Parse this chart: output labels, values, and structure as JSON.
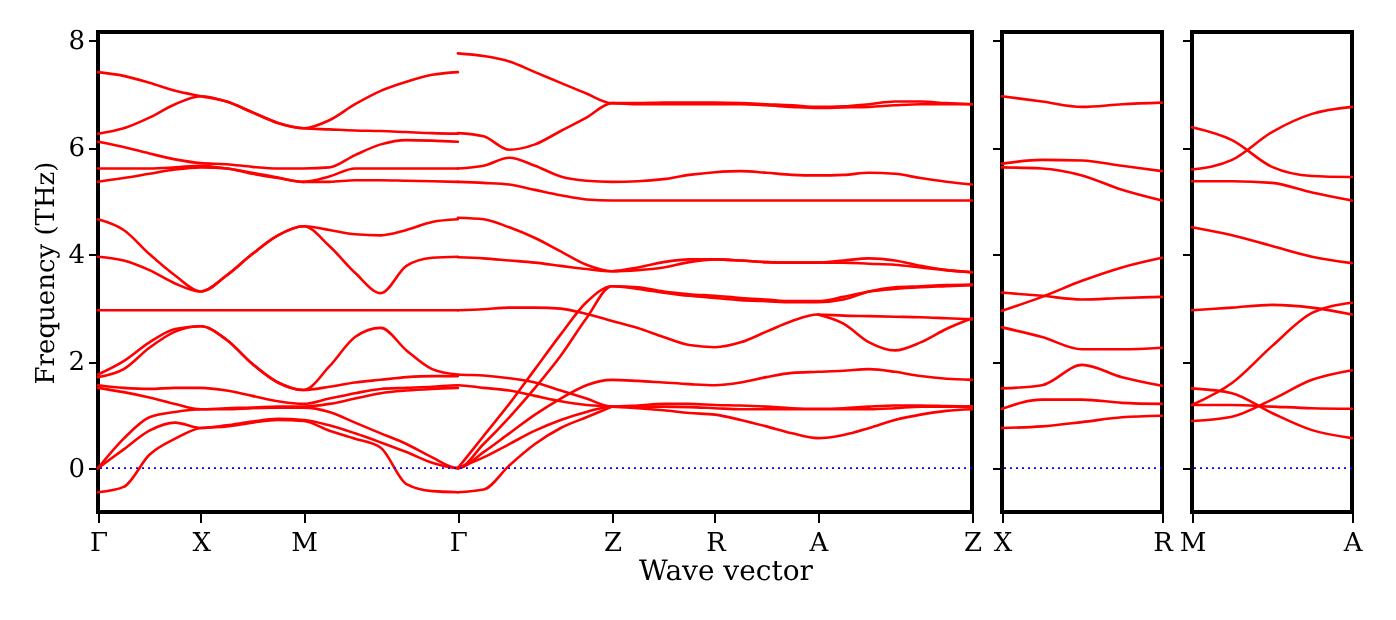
{
  "chart_data": [
    {
      "type": "line",
      "xlabel": "Wave vector",
      "ylabel": "Frequency (THz)",
      "ylim": [
        -0.82,
        8.15
      ],
      "yticks": [
        0,
        2,
        4,
        6,
        8
      ],
      "categories": [
        "Γ",
        null,
        null,
        null,
        "X",
        null,
        null,
        null,
        "M",
        null,
        null,
        null,
        null,
        null,
        "Γ",
        null,
        null,
        null,
        null,
        null,
        "Z",
        null,
        null,
        null,
        "R",
        null,
        null,
        null,
        "A",
        null,
        null,
        null,
        null,
        null,
        "Z"
      ],
      "ref_lines": [
        {
          "axis": "y",
          "value": 0,
          "color": "#0000ff",
          "line_style": "dotted"
        }
      ],
      "series": [
        {
          "color": "#ff0000",
          "values": [
            7.4,
            7.33,
            7.2,
            7.05,
            6.95,
            6.85,
            6.65,
            6.45,
            6.35,
            6.5,
            6.8,
            7.05,
            7.22,
            7.35,
            7.4,
            null,
            null,
            null,
            null,
            null,
            null,
            null,
            null,
            null,
            null,
            null,
            null,
            null,
            null,
            null,
            null,
            null,
            null,
            null,
            null
          ]
        },
        {
          "color": "#ff0000",
          "values": [
            6.25,
            6.35,
            6.55,
            6.8,
            6.95,
            6.85,
            6.65,
            6.45,
            6.35,
            6.33,
            6.31,
            6.3,
            6.28,
            6.26,
            6.25,
            null,
            null,
            null,
            null,
            null,
            null,
            null,
            null,
            null,
            null,
            null,
            null,
            null,
            null,
            null,
            null,
            null,
            null,
            null,
            null
          ]
        },
        {
          "color": "#ff0000",
          "values": [
            6.1,
            6.0,
            5.88,
            5.77,
            5.7,
            5.68,
            5.63,
            5.6,
            5.6,
            5.62,
            5.85,
            6.05,
            6.13,
            6.12,
            6.1,
            null,
            null,
            null,
            null,
            null,
            null,
            null,
            null,
            null,
            null,
            null,
            null,
            null,
            null,
            null,
            null,
            null,
            null,
            null,
            null
          ]
        },
        {
          "color": "#ff0000",
          "values": [
            5.6,
            5.6,
            5.6,
            5.62,
            5.65,
            5.6,
            5.52,
            5.43,
            5.35,
            5.45,
            5.6,
            5.6,
            5.6,
            5.6,
            5.6,
            null,
            null,
            null,
            null,
            null,
            null,
            null,
            null,
            null,
            null,
            null,
            null,
            null,
            null,
            null,
            null,
            null,
            null,
            null,
            null
          ]
        },
        {
          "color": "#ff0000",
          "values": [
            5.35,
            5.42,
            5.5,
            5.58,
            5.62,
            5.6,
            5.5,
            5.42,
            5.35,
            5.35,
            5.38,
            5.38,
            5.37,
            5.36,
            5.35,
            null,
            null,
            null,
            null,
            null,
            null,
            null,
            null,
            null,
            null,
            null,
            null,
            null,
            null,
            null,
            null,
            null,
            null,
            null,
            null
          ]
        },
        {
          "color": "#ff0000",
          "values": [
            4.65,
            4.45,
            4.0,
            3.6,
            3.3,
            3.6,
            4.0,
            4.35,
            4.52,
            4.45,
            4.37,
            4.35,
            4.45,
            4.6,
            4.65,
            null,
            null,
            null,
            null,
            null,
            null,
            null,
            null,
            null,
            null,
            null,
            null,
            null,
            null,
            null,
            null,
            null,
            null,
            null,
            null
          ]
        },
        {
          "color": "#ff0000",
          "values": [
            3.95,
            3.88,
            3.7,
            3.45,
            3.3,
            3.6,
            4.0,
            4.35,
            4.52,
            4.15,
            3.65,
            3.27,
            3.78,
            3.93,
            3.95,
            null,
            null,
            null,
            null,
            null,
            null,
            null,
            null,
            null,
            null,
            null,
            null,
            null,
            null,
            null,
            null,
            null,
            null,
            null,
            null
          ]
        },
        {
          "color": "#ff0000",
          "values": [
            2.95,
            2.95,
            2.95,
            2.95,
            2.95,
            2.95,
            2.95,
            2.95,
            2.95,
            2.95,
            2.95,
            2.95,
            2.95,
            2.95,
            2.95,
            null,
            null,
            null,
            null,
            null,
            null,
            null,
            null,
            null,
            null,
            null,
            null,
            null,
            null,
            null,
            null,
            null,
            null,
            null,
            null
          ]
        },
        {
          "color": "#ff0000",
          "values": [
            1.75,
            2.0,
            2.35,
            2.6,
            2.65,
            2.4,
            1.95,
            1.6,
            1.46,
            1.9,
            2.45,
            2.62,
            2.2,
            1.85,
            1.75,
            1.73,
            1.68,
            1.6,
            1.45,
            1.3,
            1.15,
            1.17,
            1.2,
            1.2,
            1.18,
            1.17,
            1.15,
            1.12,
            1.11,
            1.12,
            1.15,
            1.17,
            1.17,
            1.16,
            1.15
          ]
        },
        {
          "color": "#ff0000",
          "values": [
            1.7,
            1.85,
            2.25,
            2.55,
            2.65,
            2.4,
            1.95,
            1.6,
            1.46,
            1.52,
            1.6,
            1.65,
            1.7,
            1.72,
            1.72,
            null,
            null,
            null,
            null,
            null,
            null,
            null,
            null,
            null,
            null,
            null,
            null,
            null,
            null,
            null,
            null,
            null,
            null,
            null,
            null
          ]
        },
        {
          "color": "#ff0000",
          "values": [
            1.55,
            1.5,
            1.48,
            1.5,
            1.5,
            1.45,
            1.35,
            1.25,
            1.2,
            1.3,
            1.4,
            1.48,
            1.5,
            1.52,
            1.55,
            1.5,
            1.45,
            1.35,
            1.25,
            1.18,
            1.15,
            1.12,
            1.08,
            1.03,
            1.0,
            0.9,
            0.78,
            0.65,
            0.56,
            0.62,
            0.75,
            0.9,
            1.0,
            1.07,
            1.1
          ]
        },
        {
          "color": "#ff0000",
          "values": [
            1.5,
            1.42,
            1.32,
            1.2,
            1.1,
            1.12,
            1.13,
            1.15,
            1.15,
            1.2,
            1.3,
            1.4,
            1.45,
            1.48,
            1.5,
            null,
            null,
            null,
            null,
            null,
            null,
            null,
            null,
            null,
            null,
            null,
            null,
            null,
            null,
            null,
            null,
            null,
            null,
            null,
            null
          ]
        },
        {
          "color": "#ff0000",
          "values": [
            0,
            0.55,
            0.95,
            1.05,
            1.1,
            1.1,
            1.12,
            1.13,
            1.13,
            1.05,
            0.85,
            0.65,
            0.45,
            0.2,
            0,
            0.3,
            0.65,
            1.0,
            1.3,
            1.55,
            1.65,
            1.63,
            1.6,
            1.57,
            1.55,
            1.6,
            1.7,
            1.78,
            1.8,
            1.82,
            1.85,
            1.8,
            1.72,
            1.67,
            1.65
          ]
        },
        {
          "color": "#ff0000",
          "values": [
            0,
            0.35,
            0.7,
            0.85,
            0.75,
            0.8,
            0.87,
            0.92,
            0.9,
            0.8,
            0.65,
            0.48,
            0.3,
            0.1,
            0,
            0.45,
            0.95,
            1.5,
            2.1,
            2.8,
            3.4,
            3.35,
            3.28,
            3.22,
            3.18,
            3.14,
            3.12,
            3.1,
            3.1,
            3.15,
            3.3,
            3.38,
            3.4,
            3.42,
            3.43
          ]
        },
        {
          "color": "#ff0000",
          "values": [
            -0.45,
            -0.35,
            0.25,
            0.55,
            0.75,
            0.78,
            0.85,
            0.9,
            0.88,
            0.7,
            0.55,
            0.38,
            -0.3,
            -0.43,
            -0.45,
            null,
            null,
            null,
            null,
            null,
            null,
            null,
            null,
            null,
            null,
            null,
            null,
            null,
            null,
            null,
            null,
            null,
            null,
            null,
            null
          ]
        },
        {
          "color": "#ff0000",
          "values": [
            null,
            null,
            null,
            null,
            null,
            null,
            null,
            null,
            null,
            null,
            null,
            null,
            null,
            null,
            7.75,
            7.7,
            7.6,
            7.4,
            7.2,
            7.0,
            6.82,
            6.82,
            6.83,
            6.83,
            6.83,
            6.82,
            6.8,
            6.78,
            6.75,
            6.76,
            6.8,
            6.85,
            6.85,
            6.82,
            6.8
          ]
        },
        {
          "color": "#ff0000",
          "values": [
            null,
            null,
            null,
            null,
            null,
            null,
            null,
            null,
            null,
            null,
            null,
            null,
            null,
            null,
            6.26,
            6.2,
            5.95,
            6.05,
            6.3,
            6.55,
            6.82,
            6.8,
            6.8,
            6.8,
            6.8,
            6.8,
            6.78,
            6.75,
            6.73,
            6.74,
            6.75,
            6.78,
            6.8,
            6.8,
            6.8
          ]
        },
        {
          "color": "#ff0000",
          "values": [
            null,
            null,
            null,
            null,
            null,
            null,
            null,
            null,
            null,
            null,
            null,
            null,
            null,
            null,
            5.6,
            5.65,
            5.8,
            5.65,
            5.45,
            5.37,
            5.35,
            5.36,
            5.4,
            5.48,
            5.53,
            5.55,
            5.52,
            5.48,
            5.47,
            5.48,
            5.52,
            5.5,
            5.42,
            5.35,
            5.3
          ]
        },
        {
          "color": "#ff0000",
          "values": [
            null,
            null,
            null,
            null,
            null,
            null,
            null,
            null,
            null,
            null,
            null,
            null,
            null,
            null,
            5.35,
            5.33,
            5.3,
            5.2,
            5.1,
            5.02,
            5.0,
            5.0,
            5.0,
            5.0,
            5.0,
            5.0,
            5.0,
            5.0,
            5.0,
            5.0,
            5.0,
            5.0,
            5.0,
            5.0,
            5.0
          ]
        },
        {
          "color": "#ff0000",
          "values": [
            null,
            null,
            null,
            null,
            null,
            null,
            null,
            null,
            null,
            null,
            null,
            null,
            null,
            null,
            4.68,
            4.65,
            4.5,
            4.3,
            4.05,
            3.8,
            3.68,
            3.75,
            3.85,
            3.9,
            3.9,
            3.88,
            3.85,
            3.84,
            3.84,
            3.88,
            3.92,
            3.88,
            3.78,
            3.7,
            3.66
          ]
        },
        {
          "color": "#ff0000",
          "values": [
            null,
            null,
            null,
            null,
            null,
            null,
            null,
            null,
            null,
            null,
            null,
            null,
            null,
            null,
            3.94,
            3.92,
            3.88,
            3.84,
            3.78,
            3.72,
            3.68,
            3.7,
            3.75,
            3.85,
            3.9,
            3.88,
            3.85,
            3.84,
            3.84,
            3.84,
            3.82,
            3.8,
            3.75,
            3.7,
            3.66
          ]
        },
        {
          "color": "#ff0000",
          "values": [
            null,
            null,
            null,
            null,
            null,
            null,
            null,
            null,
            null,
            null,
            null,
            null,
            null,
            null,
            2.95,
            2.97,
            3.0,
            3.0,
            2.98,
            2.88,
            2.75,
            2.62,
            2.45,
            2.3,
            2.26,
            2.35,
            2.55,
            2.75,
            2.87,
            2.85,
            2.84,
            2.83,
            2.82,
            2.8,
            2.78
          ]
        },
        {
          "color": "#ff0000",
          "values": [
            null,
            null,
            null,
            null,
            null,
            null,
            null,
            null,
            null,
            null,
            null,
            null,
            null,
            null,
            null,
            null,
            null,
            null,
            null,
            null,
            null,
            null,
            null,
            null,
            null,
            null,
            null,
            null,
            2.87,
            2.7,
            2.35,
            2.2,
            2.35,
            2.6,
            2.8
          ]
        },
        {
          "color": "#ff0000",
          "values": [
            null,
            null,
            null,
            null,
            null,
            null,
            null,
            null,
            null,
            null,
            null,
            null,
            null,
            null,
            0,
            0.6,
            1.2,
            1.85,
            2.5,
            3.1,
            3.4,
            3.38,
            3.3,
            3.25,
            3.22,
            3.18,
            3.15,
            3.12,
            3.12,
            3.2,
            3.3,
            3.35,
            3.38,
            3.4,
            3.42
          ]
        },
        {
          "color": "#ff0000",
          "values": [
            null,
            null,
            null,
            null,
            null,
            null,
            null,
            null,
            null,
            null,
            null,
            null,
            null,
            null,
            0,
            0.2,
            0.45,
            0.7,
            0.9,
            1.05,
            1.15,
            1.15,
            1.15,
            1.14,
            1.12,
            1.1,
            1.1,
            1.1,
            1.1,
            1.1,
            1.1,
            1.12,
            1.15,
            1.15,
            1.15
          ]
        },
        {
          "color": "#ff0000",
          "values": [
            null,
            null,
            null,
            null,
            null,
            null,
            null,
            null,
            null,
            null,
            null,
            null,
            null,
            null,
            -0.45,
            -0.4,
            0.05,
            0.45,
            0.75,
            0.95,
            1.15,
            null,
            null,
            null,
            null,
            null,
            null,
            null,
            null,
            null,
            null,
            null,
            null,
            null,
            null
          ]
        }
      ]
    },
    {
      "type": "line",
      "tick_labels": "x",
      "ylim": [
        -0.82,
        8.15
      ],
      "yticks": [
        0,
        2,
        4,
        6,
        8
      ],
      "categories": [
        "X",
        null,
        null,
        null,
        "R"
      ],
      "ref_lines": [
        {
          "axis": "y",
          "value": 0,
          "color": "#0000ff",
          "line_style": "dotted"
        }
      ],
      "series": [
        {
          "color": "#ff0000",
          "values": [
            6.95,
            6.85,
            6.75,
            6.8,
            6.83
          ]
        },
        {
          "color": "#ff0000",
          "values": [
            5.69,
            5.76,
            5.75,
            5.65,
            5.55
          ]
        },
        {
          "color": "#ff0000",
          "values": [
            5.62,
            5.6,
            5.47,
            5.2,
            5.0
          ]
        },
        {
          "color": "#ff0000",
          "values": [
            3.28,
            3.22,
            3.15,
            3.18,
            3.2
          ]
        },
        {
          "color": "#ff0000",
          "values": [
            2.94,
            3.2,
            3.5,
            3.75,
            3.93
          ]
        },
        {
          "color": "#ff0000",
          "values": [
            2.63,
            2.45,
            2.22,
            2.22,
            2.25
          ]
        },
        {
          "color": "#ff0000",
          "values": [
            1.49,
            1.55,
            1.93,
            1.7,
            1.54
          ]
        },
        {
          "color": "#ff0000",
          "values": [
            1.11,
            1.28,
            1.28,
            1.22,
            1.2
          ]
        },
        {
          "color": "#ff0000",
          "values": [
            0.75,
            0.78,
            0.86,
            0.95,
            0.98
          ]
        }
      ]
    },
    {
      "type": "line",
      "tick_labels": "x",
      "ylim": [
        -0.82,
        8.15
      ],
      "yticks": [
        0,
        2,
        4,
        6,
        8
      ],
      "categories": [
        "M",
        null,
        null,
        null,
        "A"
      ],
      "ref_lines": [
        {
          "axis": "y",
          "value": 0,
          "color": "#0000ff",
          "line_style": "dotted"
        }
      ],
      "series": [
        {
          "color": "#ff0000",
          "values": [
            5.58,
            5.76,
            6.28,
            6.62,
            6.75
          ]
        },
        {
          "color": "#ff0000",
          "values": [
            6.37,
            6.13,
            5.63,
            5.46,
            5.44
          ]
        },
        {
          "color": "#ff0000",
          "values": [
            5.36,
            5.36,
            5.33,
            5.15,
            5.0
          ]
        },
        {
          "color": "#ff0000",
          "values": [
            4.5,
            4.35,
            4.15,
            3.95,
            3.83
          ]
        },
        {
          "color": "#ff0000",
          "values": [
            2.95,
            3.0,
            3.05,
            3.0,
            2.87
          ]
        },
        {
          "color": "#ff0000",
          "values": [
            1.18,
            1.59,
            2.28,
            2.9,
            3.09
          ]
        },
        {
          "color": "#ff0000",
          "values": [
            0.88,
            0.96,
            1.28,
            1.65,
            1.83
          ]
        },
        {
          "color": "#ff0000",
          "values": [
            1.49,
            1.4,
            1.03,
            0.71,
            0.56
          ]
        },
        {
          "color": "#ff0000",
          "values": [
            1.18,
            1.18,
            1.15,
            1.12,
            1.11
          ]
        }
      ]
    }
  ]
}
